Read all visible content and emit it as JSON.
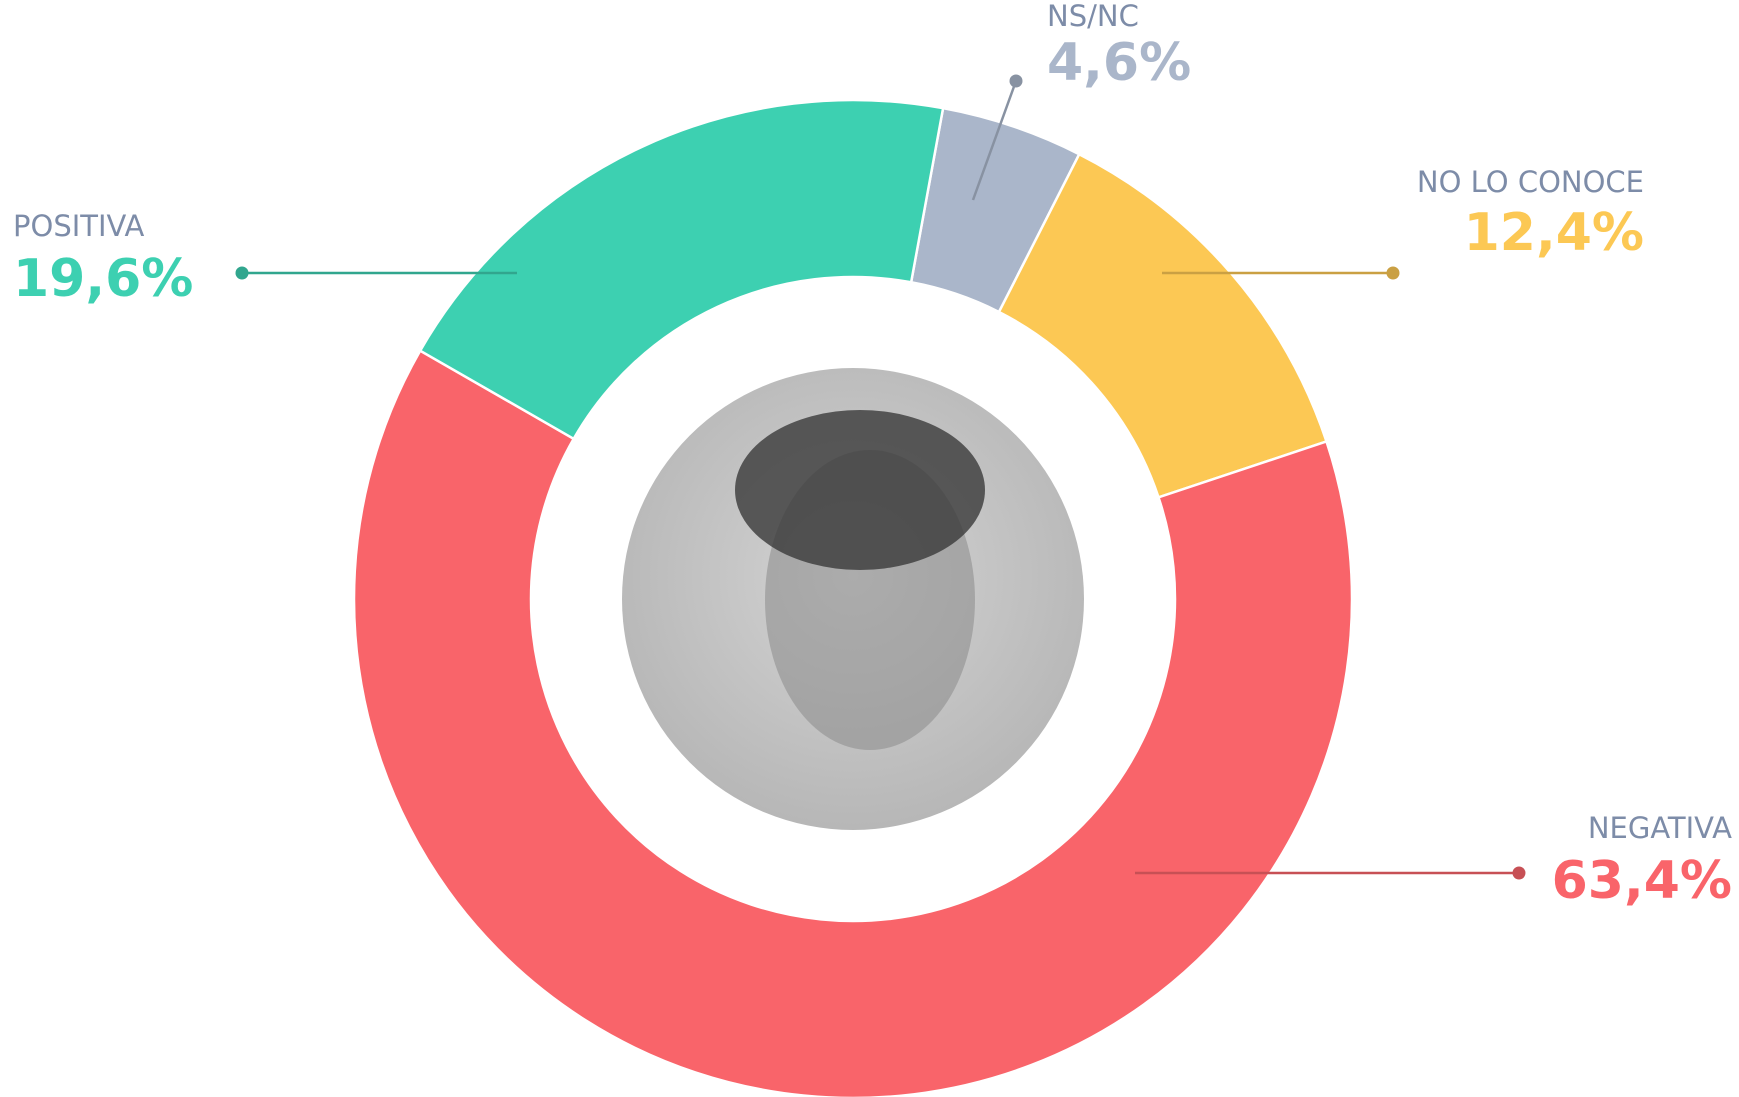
{
  "chart_data": {
    "type": "donut",
    "categories": [
      "NS/NC",
      "NO LO CONOCE",
      "NEGATIVA",
      "POSITIVA"
    ],
    "values": [
      4.6,
      12.4,
      63.4,
      19.6
    ],
    "value_labels": [
      "4,6%",
      "12,4%",
      "63,4%",
      "19,6%"
    ],
    "colors": [
      "#aab6ca",
      "#fcc854",
      "#f9646a",
      "#3dd0b1"
    ]
  }
}
